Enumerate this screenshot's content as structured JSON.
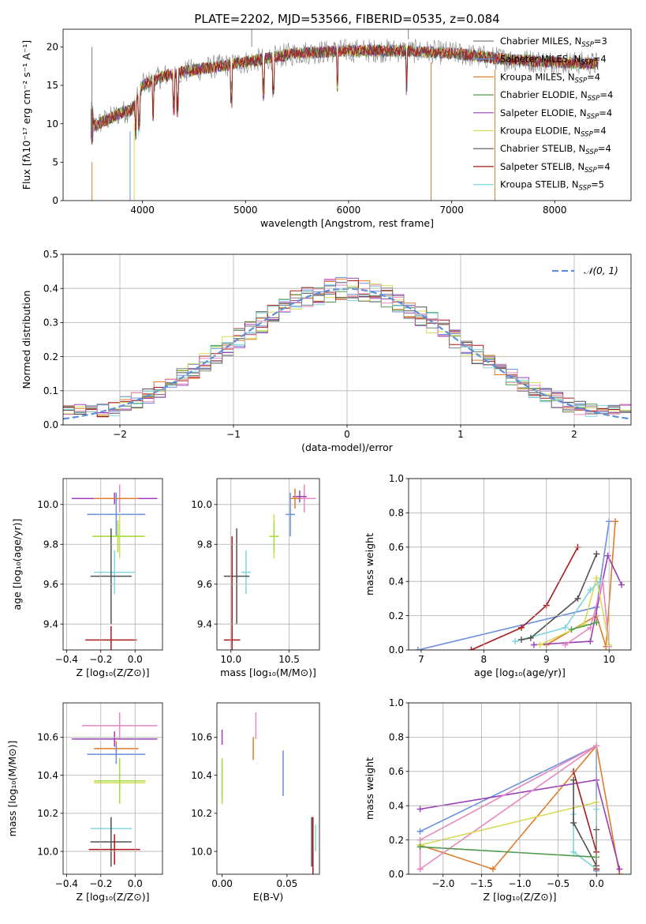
{
  "title": "PLATE=2202, MJD=53566, FIBERID=0535, z=0.084",
  "colors": {
    "Chabrier MILES": "#808080",
    "Salpeter MILES": "#6a8fdd",
    "Kroupa MILES": "#e07b2b",
    "Chabrier ELODIE": "#4f9a4f",
    "Salpeter ELODIE": "#9a3fb8",
    "Kroupa ELODIE": "#d6dc55",
    "Chabrier STELIB": "#505050",
    "Salpeter STELIB": "#aa1919",
    "Kroupa STELIB": "#7fd6dd",
    "pink": "#e887c0",
    "lime": "#a6dd3c",
    "normal_curve": "#5b8fd9"
  },
  "chart_data": [
    {
      "id": "spectrum",
      "type": "line",
      "xlabel": "wavelength [Angstrom, rest frame]",
      "ylabel": "Flux [fλ10⁻¹⁷ erg cm⁻² s⁻¹ A⁻¹]",
      "xlim": [
        3230,
        8740
      ],
      "ylim": [
        0,
        22.3
      ],
      "xticks": [
        4000,
        5000,
        6000,
        7000,
        8000
      ],
      "yticks": [
        0,
        5,
        10,
        15,
        20
      ],
      "legend_position": "right",
      "legend": [
        {
          "pre": "Chabrier MILES, N",
          "n": "3",
          "color": "#808080"
        },
        {
          "pre": "Salpeter MILES, N",
          "n": "4",
          "color": "#6a8fdd"
        },
        {
          "pre": "Kroupa MILES, N",
          "n": "4",
          "color": "#e07b2b"
        },
        {
          "pre": "Chabrier ELODIE, N",
          "n": "4",
          "color": "#4f9a4f"
        },
        {
          "pre": "Salpeter ELODIE, N",
          "n": "4",
          "color": "#9a3fb8"
        },
        {
          "pre": "Kroupa ELODIE, N",
          "n": "4",
          "color": "#d6dc55"
        },
        {
          "pre": "Chabrier STELIB, N",
          "n": "4",
          "color": "#505050"
        },
        {
          "pre": "Salpeter STELIB, N",
          "n": "4",
          "color": "#aa1919"
        },
        {
          "pre": "Kroupa STELIB, N",
          "n": "5",
          "color": "#7fd6dd"
        }
      ],
      "legend_sub": "SSP",
      "continuum": [
        [
          3500,
          9.5
        ],
        [
          3600,
          10.2
        ],
        [
          3700,
          10.8
        ],
        [
          3800,
          11.5
        ],
        [
          3900,
          11.8
        ],
        [
          4000,
          15.0
        ],
        [
          4200,
          16.2
        ],
        [
          4500,
          17.0
        ],
        [
          5000,
          18.0
        ],
        [
          5500,
          19.2
        ],
        [
          6000,
          19.5
        ],
        [
          6500,
          19.5
        ],
        [
          7000,
          19.2
        ],
        [
          7500,
          18.4
        ],
        [
          8000,
          18.0
        ],
        [
          8400,
          17.8
        ]
      ]
    },
    {
      "id": "residuals",
      "type": "histogram",
      "xlabel": "(data-model)/error",
      "ylabel": "Normed distribution",
      "xlim": [
        -2.5,
        2.5
      ],
      "ylim": [
        0,
        0.5
      ],
      "xticks": [
        -2,
        -1,
        0,
        1,
        2
      ],
      "xtick_labels": [
        "−2",
        "−1",
        "0",
        "1",
        "2"
      ],
      "yticks": [
        0.0,
        0.1,
        0.2,
        0.3,
        0.4,
        0.5
      ],
      "ytick_labels": [
        "0.0",
        "0.1",
        "0.2",
        "0.3",
        "0.4",
        "0.5"
      ],
      "grid": true,
      "legend_label": "𝒩(0, 1)",
      "legend_position": "top-right",
      "bin_width": 0.1,
      "bin_start": -2.5
    },
    {
      "id": "age-vs-metallicity",
      "type": "errorbar",
      "xlabel": "Z [log₁₀(Z/Z⊙)]",
      "ylabel": "age  [log₁₀(age/yr)]",
      "xlim": [
        -0.42,
        0.16
      ],
      "ylim": [
        9.27,
        10.13
      ],
      "xticks": [
        -0.4,
        -0.2,
        0.0
      ],
      "xtick_labels": [
        "−0.4",
        "−0.2",
        "0.0"
      ],
      "yticks": [
        9.4,
        9.6,
        9.8,
        10.0
      ],
      "ytick_labels": [
        "9.4",
        "9.6",
        "9.8",
        "10.0"
      ],
      "grid": true,
      "points": [
        {
          "x": -0.09,
          "y": 10.03,
          "xerr": 0.22,
          "yerr": 0.07,
          "color": "#e887c0"
        },
        {
          "x": -0.12,
          "y": 10.03,
          "xerr": 0.25,
          "yerr": 0.03,
          "color": "#9a3fb8"
        },
        {
          "x": -0.11,
          "y": 10.03,
          "xerr": 0.13,
          "yerr": 0.02,
          "color": "#e07b2b"
        },
        {
          "x": -0.11,
          "y": 9.95,
          "xerr": 0.17,
          "yerr": 0.11,
          "color": "#6a8fdd"
        },
        {
          "x": -0.09,
          "y": 9.84,
          "xerr": 0.15,
          "yerr": 0.11,
          "color": "#d6dc55"
        },
        {
          "x": -0.1,
          "y": 9.84,
          "xerr": 0.15,
          "yerr": 0.08,
          "color": "#a6dd3c"
        },
        {
          "x": -0.12,
          "y": 9.66,
          "xerr": 0.12,
          "yerr": 0.11,
          "color": "#7fd6dd"
        },
        {
          "x": -0.14,
          "y": 9.64,
          "xerr": 0.12,
          "yerr": 0.24,
          "color": "#505050"
        },
        {
          "x": -0.14,
          "y": 9.32,
          "xerr": 0.15,
          "yerr": 0.07,
          "color": "#aa1919"
        }
      ]
    },
    {
      "id": "age-vs-mass",
      "type": "errorbar",
      "xlabel": "mass [log₁₀(M/M⊙)]",
      "ylabel": "",
      "xlim": [
        9.88,
        10.76
      ],
      "ylim": [
        9.27,
        10.13
      ],
      "xticks": [
        10.0,
        10.5
      ],
      "xtick_labels": [
        "10.0",
        "10.5"
      ],
      "yticks": [
        9.4,
        9.6,
        9.8,
        10.0
      ],
      "ytick_labels": [
        "9.4",
        "9.6",
        "9.8",
        "10.0"
      ],
      "grid": true,
      "points": [
        {
          "x": 10.63,
          "y": 10.03,
          "xerr": 0.1,
          "yerr": 0.07,
          "color": "#e887c0"
        },
        {
          "x": 10.59,
          "y": 10.04,
          "xerr": 0.06,
          "yerr": 0.03,
          "color": "#9a3fb8"
        },
        {
          "x": 10.55,
          "y": 10.03,
          "xerr": 0.04,
          "yerr": 0.05,
          "color": "#e07b2b"
        },
        {
          "x": 10.51,
          "y": 9.95,
          "xerr": 0.04,
          "yerr": 0.11,
          "color": "#6a8fdd"
        },
        {
          "x": 10.37,
          "y": 9.84,
          "xerr": 0.04,
          "yerr": 0.11,
          "color": "#d6dc55"
        },
        {
          "x": 10.37,
          "y": 9.84,
          "xerr": 0.04,
          "yerr": 0.08,
          "color": "#a6dd3c"
        },
        {
          "x": 10.13,
          "y": 9.66,
          "xerr": 0.04,
          "yerr": 0.11,
          "color": "#7fd6dd"
        },
        {
          "x": 10.05,
          "y": 9.64,
          "xerr": 0.11,
          "yerr": 0.24,
          "color": "#505050"
        },
        {
          "x": 10.01,
          "y": 9.32,
          "xerr": 0.07,
          "yerr": 0.52,
          "color": "#aa1919"
        }
      ]
    },
    {
      "id": "weight-vs-age",
      "type": "line",
      "xlabel": "age  [log₁₀(age/yr)]",
      "ylabel": "mass weight",
      "xlim": [
        6.8,
        10.35
      ],
      "ylim": [
        0,
        1.0
      ],
      "xticks": [
        7,
        8,
        9,
        10
      ],
      "xtick_labels": [
        "7",
        "8",
        "9",
        "10"
      ],
      "yticks": [
        0.0,
        0.2,
        0.4,
        0.6,
        0.8,
        1.0
      ],
      "ytick_labels": [
        "0.0",
        "0.2",
        "0.4",
        "0.6",
        "0.8",
        "1.0"
      ],
      "grid": true,
      "series": [
        {
          "color": "#6a8fdd",
          "x": [
            6.95,
            9.8,
            10.0
          ],
          "y": [
            0.0,
            0.25,
            0.75
          ]
        },
        {
          "color": "#e07b2b",
          "x": [
            9.0,
            9.8,
            9.95,
            10.1
          ],
          "y": [
            0.03,
            0.2,
            0.02,
            0.75
          ]
        },
        {
          "color": "#9a3fb8",
          "x": [
            8.8,
            9.7,
            9.98,
            10.2
          ],
          "y": [
            0.03,
            0.05,
            0.55,
            0.38
          ]
        },
        {
          "color": "#e887c0",
          "x": [
            9.3,
            9.7,
            9.9,
            10.0
          ],
          "y": [
            0.03,
            0.13,
            0.4,
            0.02
          ]
        },
        {
          "color": "#d6dc55",
          "x": [
            8.9,
            9.6,
            9.8,
            10.0
          ],
          "y": [
            0.03,
            0.15,
            0.42,
            0.03
          ]
        },
        {
          "color": "#7fd6dd",
          "x": [
            8.5,
            9.3,
            9.7,
            9.85
          ],
          "y": [
            0.05,
            0.13,
            0.35,
            0.4
          ]
        },
        {
          "color": "#505050",
          "x": [
            8.6,
            8.75,
            9.5,
            9.8
          ],
          "y": [
            0.06,
            0.07,
            0.3,
            0.56
          ]
        },
        {
          "color": "#aa1919",
          "x": [
            7.8,
            8.6,
            9.0,
            9.5
          ],
          "y": [
            0.0,
            0.13,
            0.26,
            0.6
          ]
        },
        {
          "color": "#4f9a4f",
          "x": [
            9.4,
            9.8
          ],
          "y": [
            0.12,
            0.16
          ]
        }
      ]
    },
    {
      "id": "mass-vs-metallicity",
      "type": "errorbar",
      "xlabel": "Z [log₁₀(Z/Z⊙)]",
      "ylabel": "mass [log₁₀(M/M⊙)]",
      "xlim": [
        -0.42,
        0.16
      ],
      "ylim": [
        9.88,
        10.78
      ],
      "xticks": [
        -0.4,
        -0.2,
        0.0
      ],
      "xtick_labels": [
        "−0.4",
        "−0.2",
        "0.0"
      ],
      "yticks": [
        10.0,
        10.2,
        10.4,
        10.6
      ],
      "ytick_labels": [
        "10.0",
        "10.2",
        "10.4",
        "10.6"
      ],
      "grid": true,
      "points": [
        {
          "x": -0.09,
          "y": 10.66,
          "xerr": 0.22,
          "yerr": 0.07,
          "color": "#e887c0"
        },
        {
          "x": -0.12,
          "y": 10.59,
          "xerr": 0.25,
          "yerr": 0.04,
          "color": "#9a3fb8"
        },
        {
          "x": -0.11,
          "y": 10.54,
          "xerr": 0.13,
          "yerr": 0.04,
          "color": "#e07b2b"
        },
        {
          "x": -0.11,
          "y": 10.51,
          "xerr": 0.17,
          "yerr": 0.05,
          "color": "#6a8fdd"
        },
        {
          "x": -0.09,
          "y": 10.36,
          "xerr": 0.15,
          "yerr": 0.05,
          "color": "#d6dc55"
        },
        {
          "x": -0.09,
          "y": 10.37,
          "xerr": 0.15,
          "yerr": 0.12,
          "color": "#a6dd3c"
        },
        {
          "x": -0.14,
          "y": 10.12,
          "xerr": 0.12,
          "yerr": 0.04,
          "color": "#7fd6dd"
        },
        {
          "x": -0.14,
          "y": 10.05,
          "xerr": 0.12,
          "yerr": 0.13,
          "color": "#505050"
        },
        {
          "x": -0.12,
          "y": 10.01,
          "xerr": 0.15,
          "yerr": 0.08,
          "color": "#aa1919"
        }
      ]
    },
    {
      "id": "mass-vs-ebv",
      "type": "errorbar",
      "xlabel": "E(B-V)",
      "ylabel": "",
      "xlim": [
        -0.004,
        0.075
      ],
      "ylim": [
        9.88,
        10.78
      ],
      "xticks": [
        0.0,
        0.05
      ],
      "xtick_labels": [
        "0.00",
        "0.05"
      ],
      "yticks": [
        10.0,
        10.2,
        10.4,
        10.6
      ],
      "ytick_labels": [
        "10.0",
        "10.2",
        "10.4",
        "10.6"
      ],
      "grid": false,
      "points": [
        {
          "x": 0.026,
          "y": 10.66,
          "xerr": 0,
          "yerr": 0.07,
          "color": "#e887c0"
        },
        {
          "x": 0.0,
          "y": 10.6,
          "xerr": 0,
          "yerr": 0.04,
          "color": "#9a3fb8"
        },
        {
          "x": 0.024,
          "y": 10.54,
          "xerr": 0,
          "yerr": 0.06,
          "color": "#e07b2b"
        },
        {
          "x": 0.047,
          "y": 10.41,
          "xerr": 0,
          "yerr": 0.12,
          "color": "#6a8fdd"
        },
        {
          "x": 0.0,
          "y": 10.37,
          "xerr": 0,
          "yerr": 0.1,
          "color": "#d6dc55"
        },
        {
          "x": 0.0,
          "y": 10.37,
          "xerr": 0,
          "yerr": 0.12,
          "color": "#a6dd3c"
        },
        {
          "x": 0.072,
          "y": 10.07,
          "xerr": 0,
          "yerr": 0.07,
          "color": "#7fd6dd"
        },
        {
          "x": 0.069,
          "y": 10.05,
          "xerr": 0,
          "yerr": 0.13,
          "color": "#505050"
        },
        {
          "x": 0.07,
          "y": 10.03,
          "xerr": 0,
          "yerr": 0.15,
          "color": "#aa1919"
        }
      ]
    },
    {
      "id": "weight-vs-metallicity",
      "type": "line",
      "xlabel": "Z [log₁₀(Z/Z⊙)]",
      "ylabel": "mass weight",
      "xlim": [
        -2.45,
        0.45
      ],
      "ylim": [
        0,
        1.0
      ],
      "xticks": [
        -2.0,
        -1.5,
        -1.0,
        -0.5,
        0.0
      ],
      "xtick_labels": [
        "−2.0",
        "−1.5",
        "−1.0",
        "−0.5",
        "0.0"
      ],
      "yticks": [
        0.0,
        0.2,
        0.4,
        0.6,
        0.8,
        1.0
      ],
      "ytick_labels": [
        "0.0",
        "0.2",
        "0.4",
        "0.6",
        "0.8",
        "1.0"
      ],
      "grid": true,
      "series": [
        {
          "color": "#6a8fdd",
          "x": [
            -2.3,
            0.0,
            0.0
          ],
          "y": [
            0.25,
            0.75,
            0.02
          ]
        },
        {
          "color": "#e07b2b",
          "x": [
            -2.3,
            -1.35,
            0.0,
            0.3
          ],
          "y": [
            0.17,
            0.03,
            0.75,
            0.0
          ]
        },
        {
          "color": "#9a3fb8",
          "x": [
            -2.3,
            0.0,
            0.3
          ],
          "y": [
            0.38,
            0.55,
            0.03
          ]
        },
        {
          "color": "#e887c0",
          "x": [
            -2.3,
            0.0,
            -2.3,
            -2.3
          ],
          "y": [
            0.03,
            0.75,
            0.2,
            0.03
          ]
        },
        {
          "color": "#d6dc55",
          "x": [
            -2.3,
            0.0,
            0.0
          ],
          "y": [
            0.17,
            0.42,
            0.03
          ]
        },
        {
          "color": "#7fd6dd",
          "x": [
            -0.3,
            -0.3,
            0.0,
            0.0
          ],
          "y": [
            0.35,
            0.13,
            0.03,
            0.38
          ]
        },
        {
          "color": "#505050",
          "x": [
            -0.3,
            -0.3,
            0.0,
            0.0
          ],
          "y": [
            0.55,
            0.3,
            0.05,
            0.26
          ]
        },
        {
          "color": "#aa1919",
          "x": [
            -0.3,
            0.0,
            0.0
          ],
          "y": [
            0.6,
            0.13,
            0.03
          ]
        },
        {
          "color": "#4f9a4f",
          "x": [
            -2.3,
            0.0
          ],
          "y": [
            0.16,
            0.1
          ]
        }
      ]
    }
  ]
}
